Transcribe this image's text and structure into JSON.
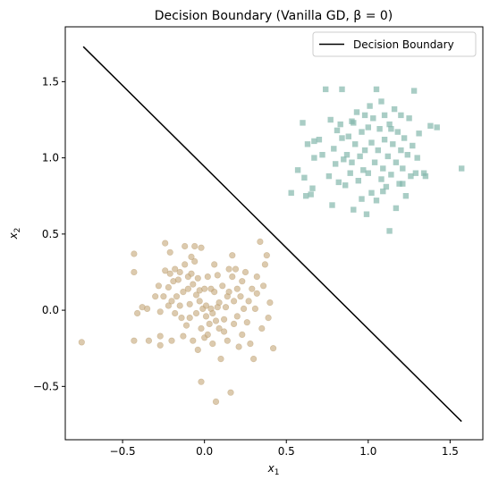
{
  "chart_data": {
    "type": "scatter",
    "title": "Decision Boundary (Vanilla GD, β = 0)",
    "xlabel": "x",
    "xlabel_sub": "1",
    "ylabel": "x",
    "ylabel_sub": "2",
    "xlim": [
      -0.85,
      1.7
    ],
    "ylim": [
      -0.85,
      1.86
    ],
    "xticks": [
      -0.5,
      0.0,
      0.5,
      1.0,
      1.5
    ],
    "xtick_labels": [
      "−0.5",
      "0.0",
      "0.5",
      "1.0",
      "1.5"
    ],
    "yticks": [
      -0.5,
      0.0,
      0.5,
      1.0,
      1.5
    ],
    "ytick_labels": [
      "−0.5",
      "0.0",
      "0.5",
      "1.0",
      "1.5"
    ],
    "grid": false,
    "legend_position": "top-right",
    "line": {
      "name": "Decision Boundary",
      "x": [
        -0.74,
        1.57
      ],
      "y": [
        1.73,
        -0.73
      ],
      "color": "#000000"
    },
    "series": [
      {
        "marker": "circle",
        "color": "#c9ae82",
        "points": [
          [
            -0.75,
            -0.21
          ],
          [
            -0.43,
            0.37
          ],
          [
            -0.43,
            0.25
          ],
          [
            -0.43,
            -0.2
          ],
          [
            -0.41,
            -0.02
          ],
          [
            -0.38,
            0.02
          ],
          [
            -0.35,
            0.01
          ],
          [
            -0.34,
            -0.2
          ],
          [
            -0.3,
            0.09
          ],
          [
            -0.28,
            0.16
          ],
          [
            -0.27,
            -0.17
          ],
          [
            -0.27,
            -0.01
          ],
          [
            -0.27,
            -0.23
          ],
          [
            -0.25,
            0.09
          ],
          [
            -0.24,
            0.44
          ],
          [
            -0.24,
            0.26
          ],
          [
            -0.22,
            0.03
          ],
          [
            -0.22,
            0.15
          ],
          [
            -0.21,
            0.24
          ],
          [
            -0.21,
            0.38
          ],
          [
            -0.2,
            -0.2
          ],
          [
            -0.2,
            0.06
          ],
          [
            -0.19,
            0.19
          ],
          [
            -0.18,
            0.27
          ],
          [
            -0.18,
            -0.02
          ],
          [
            -0.17,
            0.09
          ],
          [
            -0.16,
            0.2
          ],
          [
            -0.15,
            0.25
          ],
          [
            -0.15,
            0.03
          ],
          [
            -0.14,
            -0.05
          ],
          [
            -0.13,
            0.12
          ],
          [
            -0.13,
            -0.17
          ],
          [
            -0.12,
            0.42
          ],
          [
            -0.12,
            0.3
          ],
          [
            -0.11,
            -0.1
          ],
          [
            -0.1,
            0.22
          ],
          [
            -0.1,
            0.14
          ],
          [
            -0.09,
            -0.05
          ],
          [
            -0.09,
            0.04
          ],
          [
            -0.08,
            0.35
          ],
          [
            -0.08,
            0.24
          ],
          [
            -0.07,
            0.17
          ],
          [
            -0.07,
            -0.2
          ],
          [
            -0.06,
            0.32
          ],
          [
            -0.06,
            0.42
          ],
          [
            -0.05,
            0.1
          ],
          [
            -0.05,
            -0.02
          ],
          [
            -0.04,
            -0.26
          ],
          [
            -0.04,
            0.21
          ],
          [
            -0.03,
            0.06
          ],
          [
            -0.03,
            0.13
          ],
          [
            -0.02,
            -0.12
          ],
          [
            -0.02,
            -0.47
          ],
          [
            -0.02,
            0.41
          ],
          [
            -0.01,
            0.01
          ],
          [
            0.0,
            -0.18
          ],
          [
            0.0,
            0.14
          ],
          [
            0.01,
            -0.04
          ],
          [
            0.01,
            0.03
          ],
          [
            0.02,
            0.22
          ],
          [
            0.02,
            -0.16
          ],
          [
            0.03,
            -0.09
          ],
          [
            0.04,
            0.01
          ],
          [
            0.04,
            0.14
          ],
          [
            0.05,
            -0.02
          ],
          [
            0.05,
            -0.22
          ],
          [
            0.06,
            0.12
          ],
          [
            0.06,
            0.3
          ],
          [
            0.07,
            -0.6
          ],
          [
            0.07,
            -0.07
          ],
          [
            0.08,
            0.02
          ],
          [
            0.08,
            0.23
          ],
          [
            0.09,
            -0.12
          ],
          [
            0.09,
            0.05
          ],
          [
            0.1,
            -0.32
          ],
          [
            0.11,
            0.16
          ],
          [
            0.12,
            -0.06
          ],
          [
            0.12,
            -0.14
          ],
          [
            0.13,
            0.02
          ],
          [
            0.14,
            0.09
          ],
          [
            0.14,
            -0.2
          ],
          [
            0.15,
            0.27
          ],
          [
            0.15,
            0.12
          ],
          [
            0.16,
            -0.54
          ],
          [
            0.17,
            0.36
          ],
          [
            0.17,
            0.22
          ],
          [
            0.18,
            -0.09
          ],
          [
            0.18,
            0.06
          ],
          [
            0.19,
            0.27
          ],
          [
            0.2,
            -0.04
          ],
          [
            0.2,
            0.14
          ],
          [
            0.21,
            -0.24
          ],
          [
            0.22,
            0.09
          ],
          [
            0.23,
            0.19
          ],
          [
            0.23,
            -0.16
          ],
          [
            0.24,
            0.01
          ],
          [
            0.25,
            0.25
          ],
          [
            0.26,
            -0.08
          ],
          [
            0.27,
            0.06
          ],
          [
            0.28,
            -0.22
          ],
          [
            0.29,
            0.14
          ],
          [
            0.3,
            -0.32
          ],
          [
            0.31,
            0.01
          ],
          [
            0.32,
            0.11
          ],
          [
            0.32,
            0.22
          ],
          [
            0.34,
            0.45
          ],
          [
            0.35,
            -0.12
          ],
          [
            0.36,
            0.16
          ],
          [
            0.37,
            0.3
          ],
          [
            0.38,
            0.36
          ],
          [
            0.39,
            -0.05
          ],
          [
            0.42,
            -0.25
          ],
          [
            0.4,
            0.05
          ]
        ]
      },
      {
        "marker": "square",
        "color": "#85b8ad",
        "points": [
          [
            0.53,
            0.77
          ],
          [
            0.57,
            0.92
          ],
          [
            0.6,
            1.23
          ],
          [
            0.61,
            0.87
          ],
          [
            0.62,
            0.75
          ],
          [
            0.63,
            1.09
          ],
          [
            0.65,
            0.76
          ],
          [
            0.66,
            0.8
          ],
          [
            0.67,
            1.0
          ],
          [
            0.67,
            1.11
          ],
          [
            0.7,
            1.12
          ],
          [
            0.72,
            1.02
          ],
          [
            0.74,
            1.45
          ],
          [
            0.76,
            0.88
          ],
          [
            0.77,
            1.25
          ],
          [
            0.78,
            0.69
          ],
          [
            0.79,
            1.06
          ],
          [
            0.8,
            0.96
          ],
          [
            0.81,
            1.18
          ],
          [
            0.82,
            0.84
          ],
          [
            0.83,
            1.22
          ],
          [
            0.84,
            1.45
          ],
          [
            0.84,
            1.13
          ],
          [
            0.85,
            0.99
          ],
          [
            0.86,
            0.82
          ],
          [
            0.87,
            1.02
          ],
          [
            0.88,
            1.14
          ],
          [
            0.89,
            0.9
          ],
          [
            0.9,
            1.24
          ],
          [
            0.9,
            0.97
          ],
          [
            0.91,
            0.66
          ],
          [
            0.92,
            1.09
          ],
          [
            0.93,
            1.3
          ],
          [
            0.94,
            0.85
          ],
          [
            0.95,
            1.01
          ],
          [
            0.96,
            1.17
          ],
          [
            0.96,
            0.73
          ],
          [
            0.97,
            0.92
          ],
          [
            0.98,
            1.05
          ],
          [
            0.99,
            0.63
          ],
          [
            1.0,
            1.2
          ],
          [
            1.0,
            0.9
          ],
          [
            1.01,
            1.34
          ],
          [
            1.02,
            0.77
          ],
          [
            1.02,
            1.1
          ],
          [
            1.03,
            1.26
          ],
          [
            1.04,
            0.97
          ],
          [
            1.05,
            1.45
          ],
          [
            1.05,
            0.72
          ],
          [
            1.06,
            1.05
          ],
          [
            1.07,
            1.19
          ],
          [
            1.08,
            0.86
          ],
          [
            1.08,
            1.37
          ],
          [
            1.09,
            0.93
          ],
          [
            1.1,
            1.12
          ],
          [
            1.1,
            1.28
          ],
          [
            1.11,
            0.81
          ],
          [
            1.12,
            1.01
          ],
          [
            1.13,
            1.22
          ],
          [
            1.13,
            0.52
          ],
          [
            1.14,
            0.89
          ],
          [
            1.15,
            1.09
          ],
          [
            1.16,
            1.32
          ],
          [
            1.17,
            0.67
          ],
          [
            1.17,
            0.97
          ],
          [
            1.18,
            1.17
          ],
          [
            1.19,
            0.83
          ],
          [
            1.2,
            1.05
          ],
          [
            1.2,
            1.28
          ],
          [
            1.21,
            0.93
          ],
          [
            1.22,
            1.13
          ],
          [
            1.23,
            0.75
          ],
          [
            1.24,
            1.02
          ],
          [
            1.25,
            1.26
          ],
          [
            1.26,
            0.88
          ],
          [
            1.27,
            1.08
          ],
          [
            1.28,
            1.44
          ],
          [
            1.29,
            0.9
          ],
          [
            1.3,
            1.0
          ],
          [
            1.31,
            1.16
          ],
          [
            1.34,
            0.9
          ],
          [
            1.35,
            0.88
          ],
          [
            1.38,
            1.21
          ],
          [
            1.42,
            1.2
          ],
          [
            1.57,
            0.93
          ],
          [
            1.21,
            0.83
          ],
          [
            1.09,
            0.78
          ],
          [
            0.91,
            1.23
          ],
          [
            0.98,
            1.28
          ],
          [
            1.14,
            1.19
          ]
        ]
      }
    ]
  }
}
